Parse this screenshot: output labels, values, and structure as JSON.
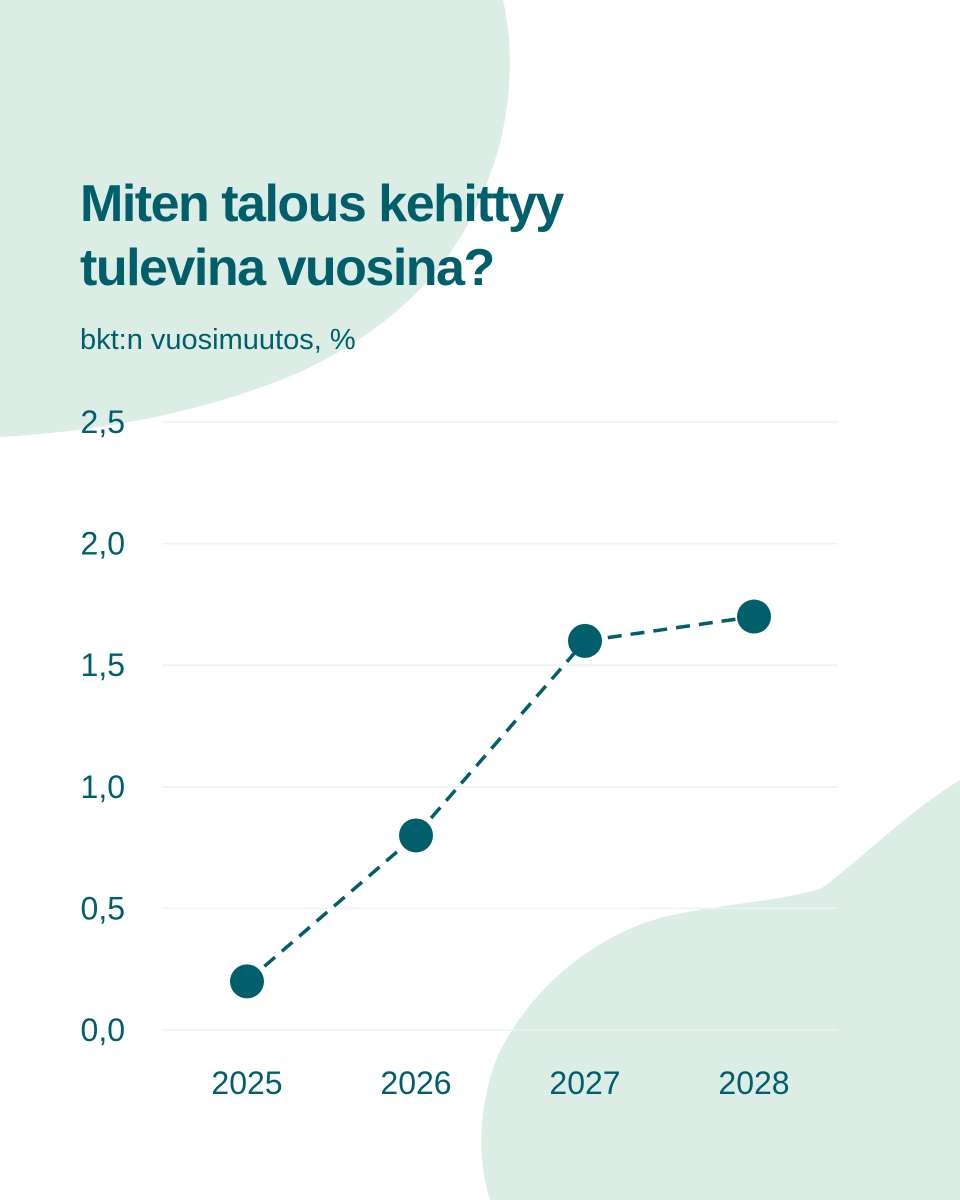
{
  "colors": {
    "accent": "#005f6b",
    "background_shape": "#dcede6",
    "grid": "#eef2f1",
    "background": "#ffffff"
  },
  "header": {
    "title_lines": [
      "Miten talous kehittyy",
      "tulevina vuosina?"
    ],
    "subtitle": "bkt:n vuosimuutos, %"
  },
  "chart_data": {
    "type": "line",
    "title": "Miten talous kehittyy tulevina vuosina?",
    "subtitle": "bkt:n vuosimuutos, %",
    "xlabel": "",
    "ylabel": "",
    "categories": [
      "2025",
      "2026",
      "2027",
      "2028"
    ],
    "series": [
      {
        "values": [
          0.2,
          0.8,
          1.6,
          1.7
        ],
        "line_style": "dashed",
        "marker": "circle"
      }
    ],
    "ylim": [
      0,
      2.5
    ],
    "yticks": [
      0,
      0.5,
      1.0,
      1.5,
      2.0,
      2.5
    ],
    "ytick_labels": [
      "0,0",
      "0,5",
      "1,0",
      "1,5",
      "2,0",
      "2,5"
    ],
    "grid": true,
    "legend": "none"
  }
}
